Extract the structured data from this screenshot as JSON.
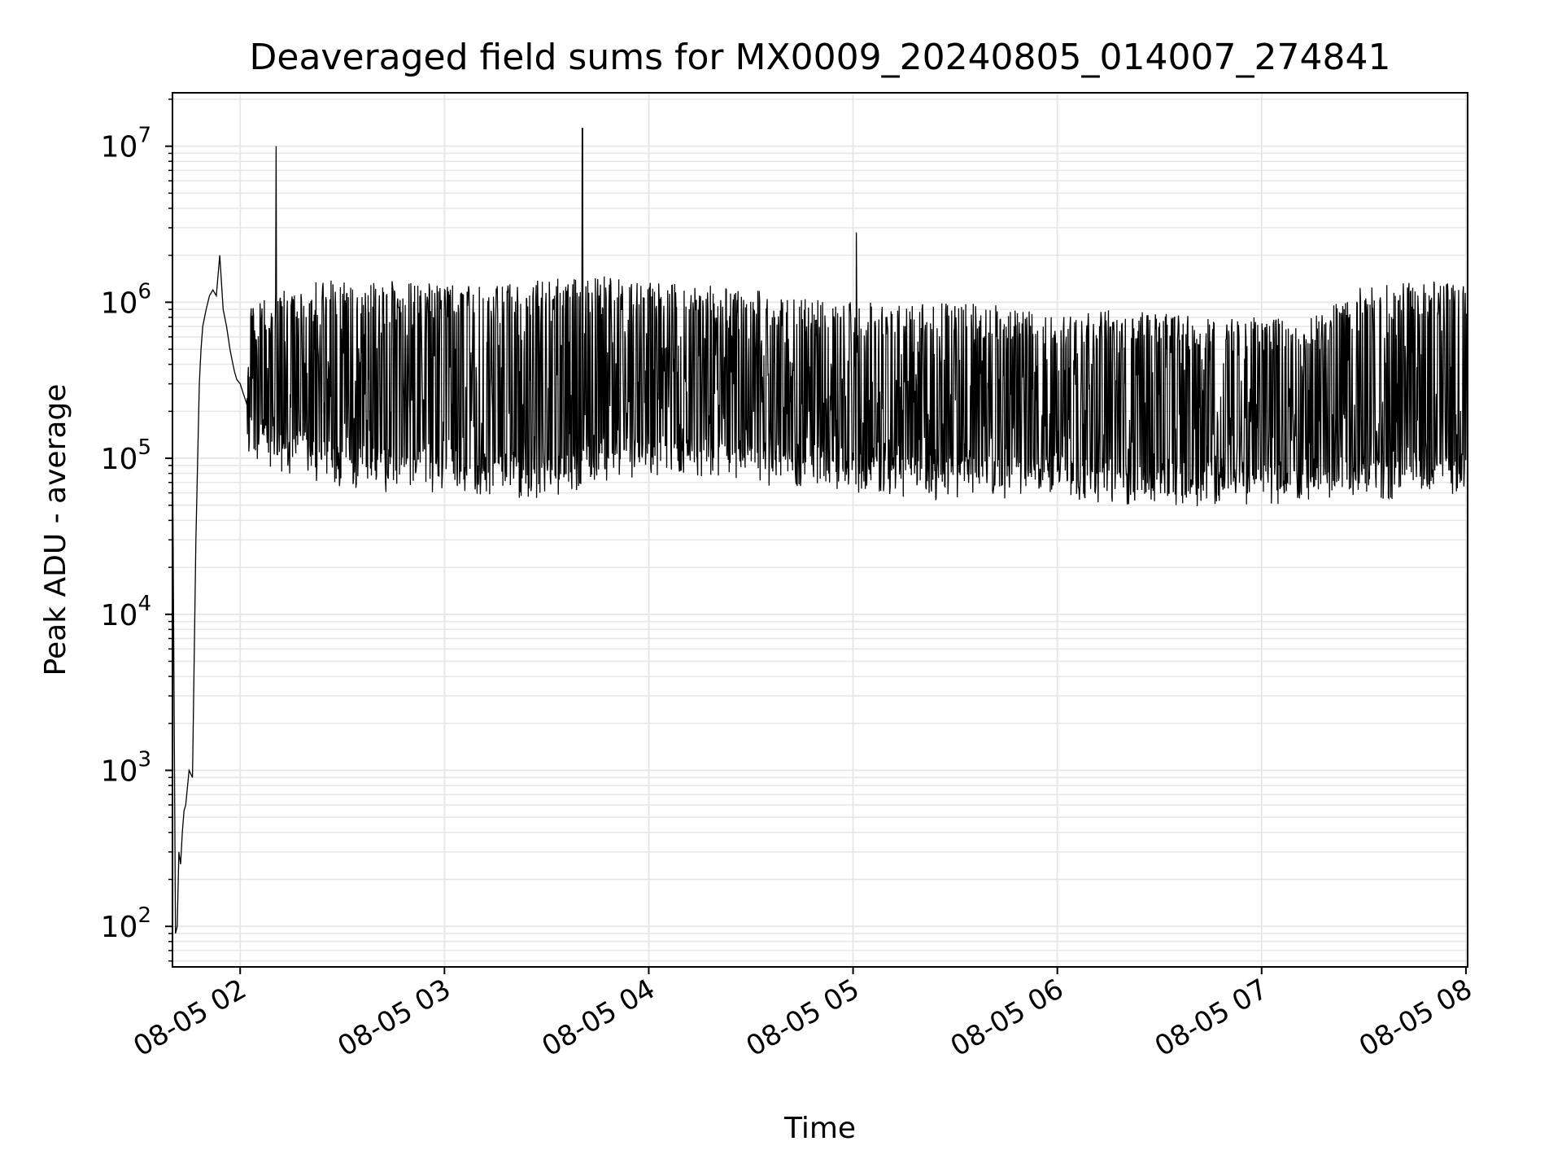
{
  "chart_data": {
    "type": "line",
    "title": "Deaveraged field sums for MX0009_20240805_014007_274841",
    "xlabel": "Time",
    "ylabel": "Peak ADU - average",
    "yscale": "log",
    "grid": true,
    "legend": "none",
    "line_color": "#000000",
    "grid_color": "#e6e6e6",
    "xlim": [
      "2024-08-05 01:40:07",
      "2024-08-05 08:00:30"
    ],
    "ylim": [
      55,
      22000000
    ],
    "x_ticks": [
      {
        "label": "08-05 02",
        "value": "2024-08-05 02:00"
      },
      {
        "label": "08-05 03",
        "value": "2024-08-05 03:00"
      },
      {
        "label": "08-05 04",
        "value": "2024-08-05 04:00"
      },
      {
        "label": "08-05 05",
        "value": "2024-08-05 05:00"
      },
      {
        "label": "08-05 06",
        "value": "2024-08-05 06:00"
      },
      {
        "label": "08-05 07",
        "value": "2024-08-05 07:00"
      },
      {
        "label": "08-05 08",
        "value": "2024-08-05 08:00"
      }
    ],
    "y_ticks": [
      {
        "base": "10",
        "exp": "2",
        "value": 100
      },
      {
        "base": "10",
        "exp": "3",
        "value": 1000
      },
      {
        "base": "10",
        "exp": "4",
        "value": 10000
      },
      {
        "base": "10",
        "exp": "5",
        "value": 100000
      },
      {
        "base": "10",
        "exp": "6",
        "value": 1000000
      },
      {
        "base": "10",
        "exp": "7",
        "value": 10000000
      }
    ],
    "series": [
      {
        "x": [
          "2024-08-05 01:40:07",
          "2024-08-05 01:41:00",
          "2024-08-05 01:41:30",
          "2024-08-05 01:42:00",
          "2024-08-05 01:42:30",
          "2024-08-05 01:43:00",
          "2024-08-05 01:43:30",
          "2024-08-05 01:44:00",
          "2024-08-05 01:45:00",
          "2024-08-05 01:46:00",
          "2024-08-05 01:47:00",
          "2024-08-05 01:48:00",
          "2024-08-05 01:48:30",
          "2024-08-05 01:49:00",
          "2024-08-05 01:50:00",
          "2024-08-05 01:51:00",
          "2024-08-05 01:52:00",
          "2024-08-05 01:53:00",
          "2024-08-05 01:54:00",
          "2024-08-05 01:55:00",
          "2024-08-05 01:56:00",
          "2024-08-05 01:57:00",
          "2024-08-05 01:57:40",
          "2024-08-05 01:58:20",
          "2024-08-05 01:59:00",
          "2024-08-05 02:00:00",
          "2024-08-05 02:02:00",
          "2024-08-05 02:04:00",
          "2024-08-05 02:06:00",
          "2024-08-05 02:08:00",
          "2024-08-05 02:10:00",
          "2024-08-05 02:10:30",
          "2024-08-05 02:11:00",
          "2024-08-05 02:12:00",
          "2024-08-05 02:15:00",
          "2024-08-05 02:20:00",
          "2024-08-05 02:30:00",
          "2024-08-05 02:45:00",
          "2024-08-05 03:00:00",
          "2024-08-05 03:15:00",
          "2024-08-05 03:30:00",
          "2024-08-05 03:40:00",
          "2024-08-05 03:40:30",
          "2024-08-05 03:41:00",
          "2024-08-05 03:45:00",
          "2024-08-05 04:00:00",
          "2024-08-05 04:15:00",
          "2024-08-05 04:30:00",
          "2024-08-05 04:45:00",
          "2024-08-05 05:00:00",
          "2024-08-05 05:01:00",
          "2024-08-05 05:01:30",
          "2024-08-05 05:02:00",
          "2024-08-05 05:15:00",
          "2024-08-05 05:30:00",
          "2024-08-05 05:45:00",
          "2024-08-05 06:00:00",
          "2024-08-05 06:15:00",
          "2024-08-05 06:30:00",
          "2024-08-05 06:45:00",
          "2024-08-05 07:00:00",
          "2024-08-05 07:15:00",
          "2024-08-05 07:30:00",
          "2024-08-05 07:45:00",
          "2024-08-05 08:00:30"
        ],
        "y": [
          150000,
          90,
          100,
          300,
          250,
          400,
          550,
          600,
          1000,
          900,
          30000,
          300000,
          500000,
          700000,
          900000,
          1100000,
          1200000,
          1100000,
          2000000,
          900000,
          700000,
          500000,
          420000,
          360000,
          320000,
          300000,
          220000,
          200000,
          150000,
          130000,
          120000,
          10000000,
          150000,
          130000,
          110000,
          100000,
          550000,
          600000,
          650000,
          700000,
          800000,
          900000,
          13000000,
          950000,
          1000000,
          900000,
          800000,
          700000,
          600000,
          500000,
          2800000,
          500000,
          450000,
          400000,
          350000,
          300000,
          200000,
          150000,
          120000,
          110000,
          100000,
          95000,
          90000,
          85000,
          80000
        ]
      }
    ],
    "envelope": {
      "x": [
        "2024-08-05 02:02:00",
        "2024-08-05 02:15:00",
        "2024-08-05 02:30:00",
        "2024-08-05 02:45:00",
        "2024-08-05 03:00:00",
        "2024-08-05 03:15:00",
        "2024-08-05 03:30:00",
        "2024-08-05 03:45:00",
        "2024-08-05 04:00:00",
        "2024-08-05 04:15:00",
        "2024-08-05 04:30:00",
        "2024-08-05 04:45:00",
        "2024-08-05 05:00:00",
        "2024-08-05 05:15:00",
        "2024-08-05 05:30:00",
        "2024-08-05 05:45:00",
        "2024-08-05 06:00:00",
        "2024-08-05 06:15:00",
        "2024-08-05 06:30:00",
        "2024-08-05 06:45:00",
        "2024-08-05 07:00:00",
        "2024-08-05 07:15:00",
        "2024-08-05 07:30:00",
        "2024-08-05 07:45:00",
        "2024-08-05 08:00:30"
      ],
      "upper": [
        900000,
        1300000,
        1400000,
        1400000,
        1300000,
        1300000,
        1400000,
        1500000,
        1400000,
        1300000,
        1200000,
        1100000,
        1000000,
        1000000,
        1000000,
        950000,
        800000,
        900000,
        850000,
        800000,
        800000,
        800000,
        1300000,
        1400000,
        1300000
      ],
      "lower": [
        110000,
        90000,
        75000,
        70000,
        70000,
        65000,
        65000,
        80000,
        85000,
        80000,
        80000,
        75000,
        70000,
        65000,
        62000,
        62000,
        65000,
        60000,
        58000,
        58000,
        58000,
        60000,
        62000,
        65000,
        65000
      ]
    }
  }
}
